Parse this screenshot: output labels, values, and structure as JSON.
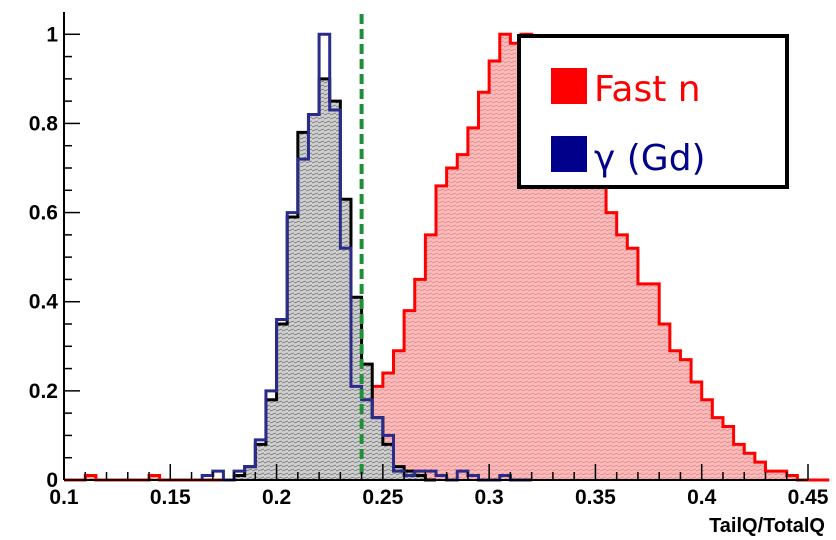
{
  "chart_data": {
    "type": "histogram",
    "xlabel": "TailQ/TotalQ",
    "ylabel": "",
    "xlim": [
      0.1,
      0.45
    ],
    "ylim": [
      0,
      1.05
    ],
    "x_ticks": [
      "0.1",
      "0.15",
      "0.2",
      "0.25",
      "0.3",
      "0.35",
      "0.4",
      "0.45"
    ],
    "y_ticks": [
      "0",
      "0.2",
      "0.4",
      "0.6",
      "0.8",
      "1"
    ],
    "bin_width": 0.005,
    "cut_line": {
      "x": 0.24,
      "style": "dashed",
      "color": "#1f8f3a"
    },
    "legend": {
      "position": "top-right",
      "entries": [
        {
          "label": "Fast n",
          "color": "#ff0000"
        },
        {
          "label": "γ (Gd)",
          "color": "#00008b"
        }
      ]
    },
    "series": [
      {
        "color": "#ff0000",
        "fill": "#f8b8b8",
        "x_start": 0.1,
        "values": [
          0.0,
          0.0,
          0.01,
          0.0,
          0.0,
          0.0,
          0.0,
          0.0,
          0.01,
          0.0,
          0.0,
          0.0,
          0.0,
          0.0,
          0.0,
          0.0,
          0.01,
          0.02,
          0.02,
          0.04,
          0.06,
          0.07,
          0.08,
          0.09,
          0.1,
          0.12,
          0.12,
          0.15,
          0.17,
          0.21,
          0.24,
          0.29,
          0.38,
          0.45,
          0.55,
          0.66,
          0.7,
          0.73,
          0.79,
          0.87,
          0.94,
          1.0,
          0.98,
          1.0,
          0.93,
          0.92,
          0.87,
          0.8,
          0.75,
          0.73,
          0.67,
          0.6,
          0.55,
          0.52,
          0.44,
          0.44,
          0.35,
          0.29,
          0.27,
          0.22,
          0.18,
          0.14,
          0.12,
          0.08,
          0.06,
          0.04,
          0.02,
          0.02,
          0.01,
          0.0,
          0.0,
          0.0
        ]
      },
      {
        "color": "#000000",
        "fill": "#c8c8c8",
        "x_start": 0.18,
        "values": [
          0.01,
          0.03,
          0.08,
          0.18,
          0.35,
          0.59,
          0.78,
          0.82,
          0.9,
          0.85,
          0.63,
          0.41,
          0.26,
          0.14,
          0.08,
          0.03,
          0.02,
          0.01,
          0.0
        ]
      },
      {
        "color": "#2b2b8c",
        "fill": "none",
        "x_start": 0.165,
        "values": [
          0.01,
          0.02,
          0.0,
          0.02,
          0.03,
          0.09,
          0.2,
          0.36,
          0.6,
          0.72,
          0.82,
          1.0,
          0.83,
          0.52,
          0.21,
          0.18,
          0.14,
          0.1,
          0.02,
          0.01,
          0.02,
          0.02,
          0.01,
          0.0,
          0.02,
          0.01,
          0.0,
          0.0,
          0.01,
          0.0,
          0.0
        ]
      }
    ]
  }
}
